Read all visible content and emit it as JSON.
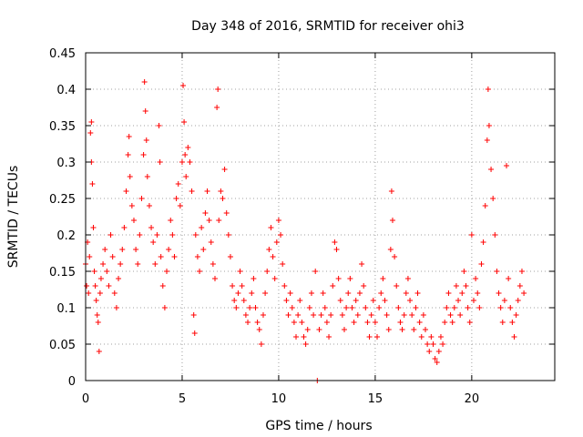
{
  "chart_data": {
    "type": "scatter",
    "title": "Day 348 of 2016, SRMTID for receiver ohi3",
    "xlabel": "GPS time / hours",
    "ylabel": "SRMTID / TECUs",
    "xlim": [
      0,
      24.3
    ],
    "ylim": [
      0,
      0.45
    ],
    "xticks": [
      0,
      5,
      10,
      15,
      20
    ],
    "xtick_labels": [
      "0",
      "5",
      "10",
      "15",
      "20"
    ],
    "yticks": [
      0,
      0.05,
      0.1,
      0.15,
      0.2,
      0.25,
      0.3,
      0.35,
      0.4,
      0.45
    ],
    "ytick_labels": [
      "0",
      "0.05",
      "0.1",
      "0.15",
      "0.2",
      "0.25",
      "0.3",
      "0.35",
      "0.4",
      "0.45"
    ],
    "grid": true,
    "marker": "plus",
    "color": "#ff0000",
    "series": [
      {
        "name": "SRMTID",
        "points": [
          [
            0.0,
            0.16
          ],
          [
            0.05,
            0.13
          ],
          [
            0.1,
            0.19
          ],
          [
            0.15,
            0.12
          ],
          [
            0.2,
            0.17
          ],
          [
            0.25,
            0.34
          ],
          [
            0.3,
            0.355
          ],
          [
            0.3,
            0.3
          ],
          [
            0.35,
            0.27
          ],
          [
            0.4,
            0.21
          ],
          [
            0.45,
            0.15
          ],
          [
            0.5,
            0.13
          ],
          [
            0.55,
            0.11
          ],
          [
            0.6,
            0.09
          ],
          [
            0.65,
            0.08
          ],
          [
            0.7,
            0.04
          ],
          [
            0.75,
            0.12
          ],
          [
            0.8,
            0.14
          ],
          [
            0.9,
            0.16
          ],
          [
            1.0,
            0.18
          ],
          [
            1.1,
            0.15
          ],
          [
            1.2,
            0.13
          ],
          [
            1.3,
            0.2
          ],
          [
            1.4,
            0.17
          ],
          [
            1.5,
            0.12
          ],
          [
            1.6,
            0.1
          ],
          [
            1.7,
            0.14
          ],
          [
            1.8,
            0.16
          ],
          [
            1.9,
            0.18
          ],
          [
            2.0,
            0.21
          ],
          [
            2.1,
            0.26
          ],
          [
            2.2,
            0.31
          ],
          [
            2.25,
            0.335
          ],
          [
            2.3,
            0.28
          ],
          [
            2.4,
            0.24
          ],
          [
            2.5,
            0.22
          ],
          [
            2.6,
            0.18
          ],
          [
            2.7,
            0.16
          ],
          [
            2.8,
            0.2
          ],
          [
            2.9,
            0.25
          ],
          [
            3.0,
            0.31
          ],
          [
            3.05,
            0.41
          ],
          [
            3.1,
            0.37
          ],
          [
            3.15,
            0.33
          ],
          [
            3.2,
            0.28
          ],
          [
            3.3,
            0.24
          ],
          [
            3.4,
            0.21
          ],
          [
            3.5,
            0.19
          ],
          [
            3.6,
            0.16
          ],
          [
            3.7,
            0.2
          ],
          [
            3.8,
            0.35
          ],
          [
            3.85,
            0.3
          ],
          [
            3.9,
            0.17
          ],
          [
            4.0,
            0.13
          ],
          [
            4.1,
            0.1
          ],
          [
            4.2,
            0.15
          ],
          [
            4.3,
            0.18
          ],
          [
            4.4,
            0.22
          ],
          [
            4.5,
            0.2
          ],
          [
            4.6,
            0.17
          ],
          [
            4.7,
            0.25
          ],
          [
            4.8,
            0.27
          ],
          [
            4.9,
            0.24
          ],
          [
            5.0,
            0.3
          ],
          [
            5.05,
            0.405
          ],
          [
            5.1,
            0.355
          ],
          [
            5.15,
            0.31
          ],
          [
            5.2,
            0.28
          ],
          [
            5.3,
            0.32
          ],
          [
            5.4,
            0.3
          ],
          [
            5.5,
            0.26
          ],
          [
            5.6,
            0.09
          ],
          [
            5.65,
            0.065
          ],
          [
            5.7,
            0.2
          ],
          [
            5.8,
            0.17
          ],
          [
            5.9,
            0.15
          ],
          [
            6.0,
            0.21
          ],
          [
            6.1,
            0.18
          ],
          [
            6.2,
            0.23
          ],
          [
            6.3,
            0.26
          ],
          [
            6.4,
            0.22
          ],
          [
            6.5,
            0.19
          ],
          [
            6.6,
            0.16
          ],
          [
            6.7,
            0.14
          ],
          [
            6.8,
            0.375
          ],
          [
            6.85,
            0.4
          ],
          [
            6.9,
            0.22
          ],
          [
            7.0,
            0.26
          ],
          [
            7.1,
            0.25
          ],
          [
            7.2,
            0.29
          ],
          [
            7.3,
            0.23
          ],
          [
            7.4,
            0.2
          ],
          [
            7.5,
            0.17
          ],
          [
            7.6,
            0.13
          ],
          [
            7.7,
            0.11
          ],
          [
            7.8,
            0.1
          ],
          [
            7.9,
            0.12
          ],
          [
            8.0,
            0.15
          ],
          [
            8.1,
            0.13
          ],
          [
            8.2,
            0.11
          ],
          [
            8.3,
            0.09
          ],
          [
            8.4,
            0.08
          ],
          [
            8.5,
            0.1
          ],
          [
            8.6,
            0.12
          ],
          [
            8.7,
            0.14
          ],
          [
            8.8,
            0.1
          ],
          [
            8.9,
            0.08
          ],
          [
            9.0,
            0.07
          ],
          [
            9.1,
            0.05
          ],
          [
            9.2,
            0.09
          ],
          [
            9.3,
            0.12
          ],
          [
            9.4,
            0.15
          ],
          [
            9.5,
            0.18
          ],
          [
            9.6,
            0.21
          ],
          [
            9.7,
            0.17
          ],
          [
            9.8,
            0.14
          ],
          [
            9.9,
            0.19
          ],
          [
            10.0,
            0.22
          ],
          [
            10.1,
            0.2
          ],
          [
            10.2,
            0.16
          ],
          [
            10.3,
            0.13
          ],
          [
            10.4,
            0.11
          ],
          [
            10.5,
            0.09
          ],
          [
            10.6,
            0.12
          ],
          [
            10.7,
            0.1
          ],
          [
            10.8,
            0.08
          ],
          [
            10.9,
            0.06
          ],
          [
            11.0,
            0.09
          ],
          [
            11.1,
            0.11
          ],
          [
            11.2,
            0.08
          ],
          [
            11.3,
            0.06
          ],
          [
            11.4,
            0.05
          ],
          [
            11.5,
            0.07
          ],
          [
            11.6,
            0.1
          ],
          [
            11.7,
            0.12
          ],
          [
            11.8,
            0.09
          ],
          [
            11.9,
            0.15
          ],
          [
            12.0,
            0.0
          ],
          [
            12.1,
            0.07
          ],
          [
            12.2,
            0.09
          ],
          [
            12.3,
            0.12
          ],
          [
            12.4,
            0.1
          ],
          [
            12.5,
            0.08
          ],
          [
            12.6,
            0.06
          ],
          [
            12.7,
            0.09
          ],
          [
            12.8,
            0.13
          ],
          [
            12.9,
            0.19
          ],
          [
            13.0,
            0.18
          ],
          [
            13.1,
            0.14
          ],
          [
            13.2,
            0.11
          ],
          [
            13.3,
            0.09
          ],
          [
            13.4,
            0.07
          ],
          [
            13.5,
            0.1
          ],
          [
            13.6,
            0.12
          ],
          [
            13.7,
            0.14
          ],
          [
            13.8,
            0.1
          ],
          [
            13.9,
            0.08
          ],
          [
            14.0,
            0.11
          ],
          [
            14.1,
            0.09
          ],
          [
            14.2,
            0.12
          ],
          [
            14.3,
            0.16
          ],
          [
            14.4,
            0.13
          ],
          [
            14.5,
            0.1
          ],
          [
            14.6,
            0.08
          ],
          [
            14.7,
            0.06
          ],
          [
            14.8,
            0.09
          ],
          [
            14.9,
            0.11
          ],
          [
            15.0,
            0.08
          ],
          [
            15.1,
            0.06
          ],
          [
            15.2,
            0.1
          ],
          [
            15.3,
            0.12
          ],
          [
            15.4,
            0.14
          ],
          [
            15.5,
            0.11
          ],
          [
            15.6,
            0.09
          ],
          [
            15.7,
            0.07
          ],
          [
            15.8,
            0.18
          ],
          [
            15.85,
            0.26
          ],
          [
            15.9,
            0.22
          ],
          [
            16.0,
            0.17
          ],
          [
            16.1,
            0.13
          ],
          [
            16.2,
            0.1
          ],
          [
            16.3,
            0.08
          ],
          [
            16.4,
            0.07
          ],
          [
            16.5,
            0.09
          ],
          [
            16.6,
            0.12
          ],
          [
            16.7,
            0.14
          ],
          [
            16.8,
            0.11
          ],
          [
            16.9,
            0.09
          ],
          [
            17.0,
            0.07
          ],
          [
            17.1,
            0.1
          ],
          [
            17.2,
            0.12
          ],
          [
            17.3,
            0.08
          ],
          [
            17.4,
            0.06
          ],
          [
            17.5,
            0.09
          ],
          [
            17.6,
            0.07
          ],
          [
            17.7,
            0.05
          ],
          [
            17.8,
            0.04
          ],
          [
            17.9,
            0.06
          ],
          [
            18.0,
            0.05
          ],
          [
            18.1,
            0.03
          ],
          [
            18.2,
            0.025
          ],
          [
            18.3,
            0.04
          ],
          [
            18.4,
            0.06
          ],
          [
            18.5,
            0.05
          ],
          [
            18.6,
            0.08
          ],
          [
            18.7,
            0.1
          ],
          [
            18.8,
            0.12
          ],
          [
            18.9,
            0.09
          ],
          [
            19.0,
            0.08
          ],
          [
            19.1,
            0.1
          ],
          [
            19.2,
            0.13
          ],
          [
            19.3,
            0.11
          ],
          [
            19.4,
            0.09
          ],
          [
            19.5,
            0.12
          ],
          [
            19.6,
            0.15
          ],
          [
            19.7,
            0.13
          ],
          [
            19.8,
            0.1
          ],
          [
            19.9,
            0.08
          ],
          [
            20.0,
            0.2
          ],
          [
            20.1,
            0.11
          ],
          [
            20.2,
            0.14
          ],
          [
            20.3,
            0.12
          ],
          [
            20.4,
            0.1
          ],
          [
            20.5,
            0.16
          ],
          [
            20.6,
            0.19
          ],
          [
            20.7,
            0.24
          ],
          [
            20.8,
            0.33
          ],
          [
            20.85,
            0.4
          ],
          [
            20.9,
            0.35
          ],
          [
            21.0,
            0.29
          ],
          [
            21.1,
            0.25
          ],
          [
            21.2,
            0.2
          ],
          [
            21.3,
            0.15
          ],
          [
            21.4,
            0.12
          ],
          [
            21.5,
            0.1
          ],
          [
            21.6,
            0.08
          ],
          [
            21.7,
            0.11
          ],
          [
            21.8,
            0.295
          ],
          [
            21.9,
            0.14
          ],
          [
            22.0,
            0.1
          ],
          [
            22.1,
            0.08
          ],
          [
            22.2,
            0.06
          ],
          [
            22.3,
            0.09
          ],
          [
            22.4,
            0.11
          ],
          [
            22.5,
            0.13
          ],
          [
            22.6,
            0.15
          ],
          [
            22.7,
            0.12
          ]
        ]
      }
    ]
  }
}
